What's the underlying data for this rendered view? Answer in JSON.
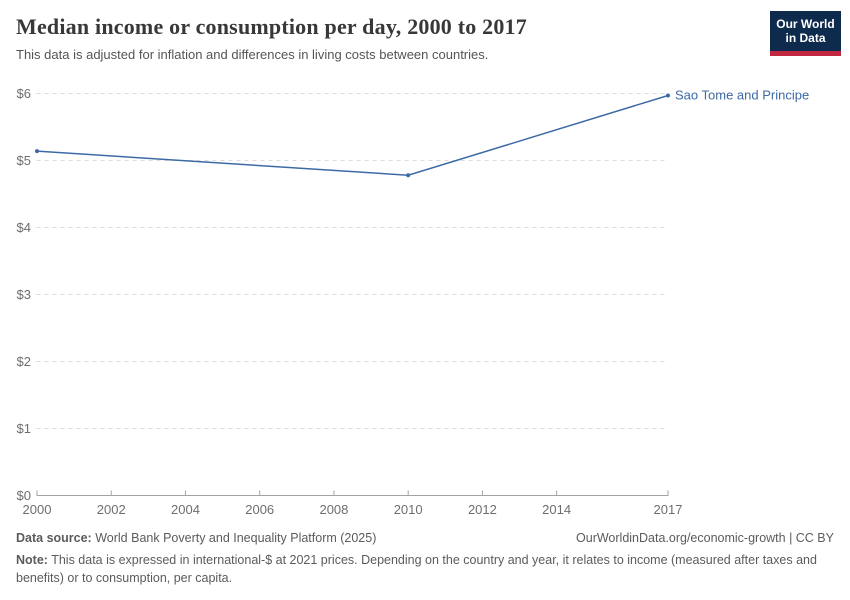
{
  "header": {
    "title": "Median income or consumption per day, 2000 to 2017",
    "subtitle": "This data is adjusted for inflation and differences in living costs between countries.",
    "logo": {
      "line1": "Our World",
      "line2": "in Data"
    }
  },
  "chart_data": {
    "type": "line",
    "title": "Median income or consumption per day, 2000 to 2017",
    "xlabel": "",
    "ylabel": "",
    "xlim": [
      2000,
      2017
    ],
    "ylim": [
      0,
      6
    ],
    "xticks": [
      2000,
      2002,
      2004,
      2006,
      2008,
      2010,
      2012,
      2014,
      2017
    ],
    "yticks": [
      0,
      1,
      2,
      3,
      4,
      5,
      6
    ],
    "ytick_labels": [
      "$0",
      "$1",
      "$2",
      "$3",
      "$4",
      "$5",
      "$6"
    ],
    "grid": "horizontal-dashed",
    "legend_position": "end-of-line-label",
    "series": [
      {
        "name": "Sao Tome and Principe",
        "color": "#3d6aa5",
        "x": [
          2000,
          2010,
          2017
        ],
        "values": [
          5.14,
          4.78,
          5.97
        ]
      }
    ]
  },
  "colors": {
    "accent_line": "#3d6aa5",
    "grid": "#dcdcdc",
    "axis": "#a3a3a3",
    "tick_text": "#6e6e6e",
    "logo_navy": "#0e2a4d",
    "logo_red": "#c0283f"
  },
  "footer": {
    "data_source_label": "Data source:",
    "data_source": "World Bank Poverty and Inequality Platform (2025)",
    "link": "OurWorldinData.org/economic-growth | CC BY",
    "note_label": "Note:",
    "note": "This data is expressed in international-$ at 2021 prices. Depending on the country and year, it relates to income (measured after taxes and benefits) or to consumption, per capita."
  }
}
